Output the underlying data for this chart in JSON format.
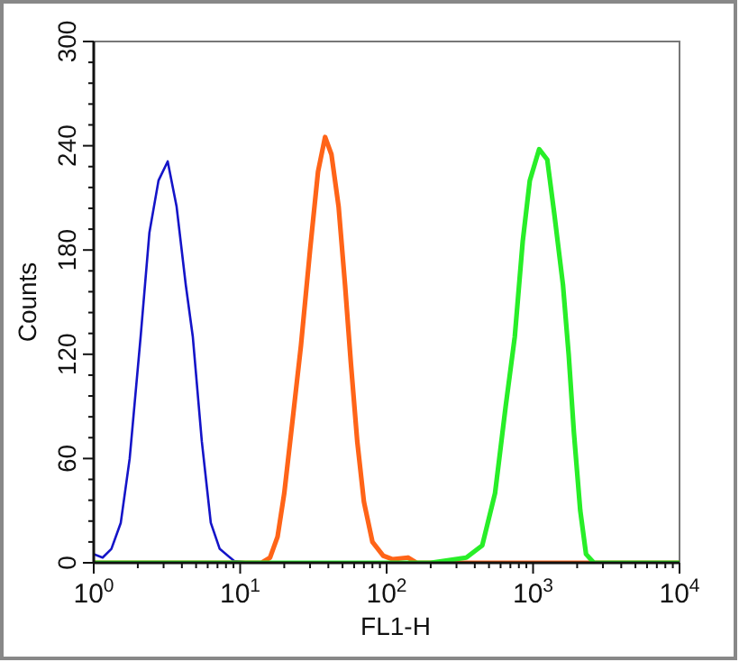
{
  "chart_data": {
    "type": "line",
    "xlabel": "FL1-H",
    "ylabel": "Counts",
    "log": "x",
    "grid": false,
    "marker": "none",
    "line_style": "solid",
    "xlim": [
      1,
      10000
    ],
    "ylim": [
      0,
      300
    ],
    "xticks": [
      {
        "value": 1,
        "label": "10$^{0}$"
      },
      {
        "value": 2,
        "label": null
      },
      {
        "value": 3,
        "label": null
      },
      {
        "value": 4,
        "label": null
      },
      {
        "value": 5,
        "label": null
      },
      {
        "value": 6,
        "label": null
      },
      {
        "value": 7,
        "label": null
      },
      {
        "value": 8,
        "label": null
      },
      {
        "value": 9,
        "label": null
      },
      {
        "value": 10,
        "label": "10$^{1}$"
      },
      {
        "value": 20,
        "label": null
      },
      {
        "value": 30,
        "label": null
      },
      {
        "value": 40,
        "label": null
      },
      {
        "value": 50,
        "label": null
      },
      {
        "value": 60,
        "label": null
      },
      {
        "value": 70,
        "label": null
      },
      {
        "value": 80,
        "label": null
      },
      {
        "value": 90,
        "label": null
      },
      {
        "value": 100,
        "label": "10$^{2}$"
      },
      {
        "value": 200,
        "label": null
      },
      {
        "value": 300,
        "label": null
      },
      {
        "value": 400,
        "label": null
      },
      {
        "value": 500,
        "label": null
      },
      {
        "value": 600,
        "label": null
      },
      {
        "value": 700,
        "label": null
      },
      {
        "value": 800,
        "label": null
      },
      {
        "value": 900,
        "label": null
      },
      {
        "value": 1000,
        "label": "10$^{3}$"
      },
      {
        "value": 2000,
        "label": null
      },
      {
        "value": 3000,
        "label": null
      },
      {
        "value": 4000,
        "label": null
      },
      {
        "value": 5000,
        "label": null
      },
      {
        "value": 6000,
        "label": null
      },
      {
        "value": 7000,
        "label": null
      },
      {
        "value": 8000,
        "label": null
      },
      {
        "value": 9000,
        "label": null
      },
      {
        "value": 10000,
        "label": "10$^{4}$"
      }
    ],
    "yticks": [
      0,
      {
        "value": 12,
        "label": null
      },
      {
        "value": 24,
        "label": null
      },
      {
        "value": 36,
        "label": null
      },
      {
        "value": 48,
        "label": null
      },
      60,
      {
        "value": 72,
        "label": null
      },
      {
        "value": 84,
        "label": null
      },
      {
        "value": 96,
        "label": null
      },
      {
        "value": 108,
        "label": null
      },
      120,
      {
        "value": 132,
        "label": null
      },
      {
        "value": 144,
        "label": null
      },
      {
        "value": 156,
        "label": null
      },
      {
        "value": 168,
        "label": null
      },
      180,
      {
        "value": 192,
        "label": null
      },
      {
        "value": 204,
        "label": null
      },
      {
        "value": 216,
        "label": null
      },
      {
        "value": 228,
        "label": null
      },
      240,
      {
        "value": 252,
        "label": null
      },
      {
        "value": 264,
        "label": null
      },
      {
        "value": 276,
        "label": null
      },
      {
        "value": 288,
        "label": null
      },
      300
    ],
    "series": [
      {
        "color": "#1414c8",
        "x": [
          1,
          1.15,
          1.32,
          1.53,
          1.76,
          2.09,
          2.4,
          2.77,
          3.2,
          3.68,
          4.25,
          4.75,
          5.47,
          6.3,
          7.25,
          9.1,
          12,
          10000
        ],
        "values": [
          5,
          3,
          8,
          23,
          60,
          130,
          190,
          220,
          231,
          205,
          160,
          130,
          70,
          23,
          8,
          1,
          0,
          0
        ]
      },
      {
        "color": "#ff6418",
        "x": [
          1,
          14,
          16,
          18,
          20,
          23,
          26,
          30,
          34,
          38,
          42,
          47,
          52,
          57,
          63,
          70,
          80,
          95,
          110,
          140,
          160,
          10000
        ],
        "values": [
          0,
          0,
          3,
          15,
          40,
          85,
          125,
          180,
          225,
          245,
          235,
          205,
          160,
          115,
          70,
          35,
          12,
          4,
          2,
          3,
          0,
          0
        ]
      },
      {
        "color": "#28ee28",
        "x": [
          1,
          200,
          350,
          450,
          550,
          650,
          750,
          850,
          950,
          1100,
          1250,
          1400,
          1600,
          1750,
          1900,
          2100,
          2300,
          2600,
          10000
        ],
        "values": [
          0,
          0,
          3,
          10,
          40,
          90,
          130,
          185,
          220,
          238,
          232,
          200,
          160,
          120,
          75,
          30,
          5,
          0,
          0
        ]
      }
    ]
  }
}
